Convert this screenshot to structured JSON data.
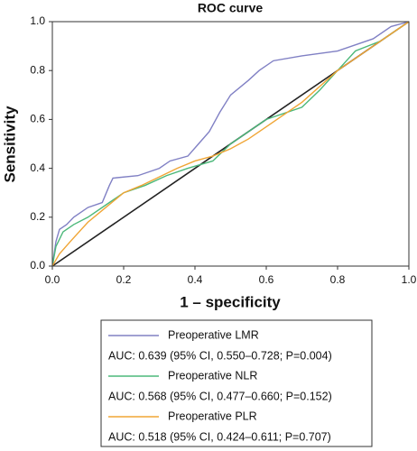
{
  "chart_data": {
    "type": "line",
    "title": "ROC curve",
    "xlabel": "1 – specificity",
    "ylabel": "Sensitivity",
    "xlim": [
      0,
      1
    ],
    "ylim": [
      0,
      1
    ],
    "xticks": [
      {
        "value": 0,
        "label": "0.0"
      },
      {
        "value": 0.2,
        "label": "0.2"
      },
      {
        "value": 0.4,
        "label": "0.4"
      },
      {
        "value": 0.6,
        "label": "0.6"
      },
      {
        "value": 0.8,
        "label": "0.8"
      },
      {
        "value": 1,
        "label": "1.0"
      }
    ],
    "yticks": [
      {
        "value": 0,
        "label": "0.0"
      },
      {
        "value": 0.2,
        "label": "0.2"
      },
      {
        "value": 0.4,
        "label": "0.4"
      },
      {
        "value": 0.6,
        "label": "0.6"
      },
      {
        "value": 0.8,
        "label": "0.8"
      },
      {
        "value": 1,
        "label": "1.0"
      }
    ],
    "series": [
      {
        "name": "Preoperative LMR",
        "color": "#8080c4",
        "auc_label": "AUC: 0.639 (95% CI, 0.550–0.728; P=0.004)",
        "x": [
          0,
          0.01,
          0.02,
          0.04,
          0.06,
          0.1,
          0.14,
          0.16,
          0.17,
          0.24,
          0.3,
          0.33,
          0.38,
          0.41,
          0.44,
          0.47,
          0.5,
          0.55,
          0.58,
          0.62,
          0.7,
          0.8,
          0.9,
          0.95,
          1
        ],
        "values": [
          0,
          0.1,
          0.15,
          0.17,
          0.2,
          0.24,
          0.26,
          0.33,
          0.36,
          0.37,
          0.4,
          0.43,
          0.45,
          0.5,
          0.55,
          0.63,
          0.7,
          0.76,
          0.8,
          0.84,
          0.86,
          0.88,
          0.93,
          0.98,
          1
        ]
      },
      {
        "name": "Preoperative NLR",
        "color": "#4cb87a",
        "auc_label": "AUC: 0.568 (95% CI, 0.477–0.660; P=0.152)",
        "x": [
          0,
          0.01,
          0.03,
          0.06,
          0.1,
          0.15,
          0.2,
          0.26,
          0.32,
          0.38,
          0.45,
          0.5,
          0.55,
          0.6,
          0.7,
          0.75,
          0.8,
          0.85,
          0.92,
          1
        ],
        "values": [
          0,
          0.08,
          0.14,
          0.17,
          0.2,
          0.25,
          0.3,
          0.33,
          0.37,
          0.4,
          0.43,
          0.5,
          0.55,
          0.6,
          0.65,
          0.72,
          0.8,
          0.88,
          0.92,
          1
        ]
      },
      {
        "name": "Preoperative PLR",
        "color": "#f0a535",
        "auc_label": "AUC: 0.518 (95% CI, 0.424–0.611; P=0.707)",
        "x": [
          0,
          0.02,
          0.05,
          0.1,
          0.15,
          0.2,
          0.25,
          0.35,
          0.4,
          0.45,
          0.5,
          0.55,
          0.6,
          0.7,
          0.8,
          0.85,
          0.92,
          1
        ],
        "values": [
          0,
          0.05,
          0.1,
          0.18,
          0.24,
          0.3,
          0.33,
          0.4,
          0.43,
          0.45,
          0.48,
          0.52,
          0.57,
          0.67,
          0.8,
          0.85,
          0.92,
          1
        ]
      }
    ]
  }
}
